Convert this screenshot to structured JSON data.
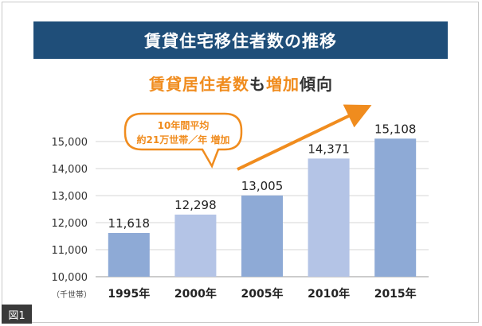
{
  "title": "賃貸住宅移住者数の推移",
  "subtitle": {
    "part1": "賃貸居住者数",
    "part2": "も",
    "part3": "増加",
    "part4": "傾向"
  },
  "callout": {
    "line1": "10年間平均",
    "line2": "約21万世帯／年 増加"
  },
  "unit_label": "（千世帯）",
  "figure_label": "図1",
  "colors": {
    "title_bg": "#1f4e79",
    "accent": "#f08c1e",
    "bar_dark": "#8eaad6",
    "bar_light": "#b4c4e6"
  },
  "chart_data": {
    "type": "bar",
    "categories": [
      "1995年",
      "2000年",
      "2005年",
      "2010年",
      "2015年"
    ],
    "values": [
      11618,
      12298,
      13005,
      14371,
      15108
    ],
    "value_labels": [
      "11,618",
      "12,298",
      "13,005",
      "14,371",
      "15,108"
    ],
    "ylim": [
      10000,
      15000
    ],
    "yticks": [
      10000,
      11000,
      12000,
      13000,
      14000,
      15000
    ],
    "ytick_labels": [
      "10,000",
      "11,000",
      "12,000",
      "13,000",
      "14,000",
      "15,000"
    ],
    "grid": true
  }
}
